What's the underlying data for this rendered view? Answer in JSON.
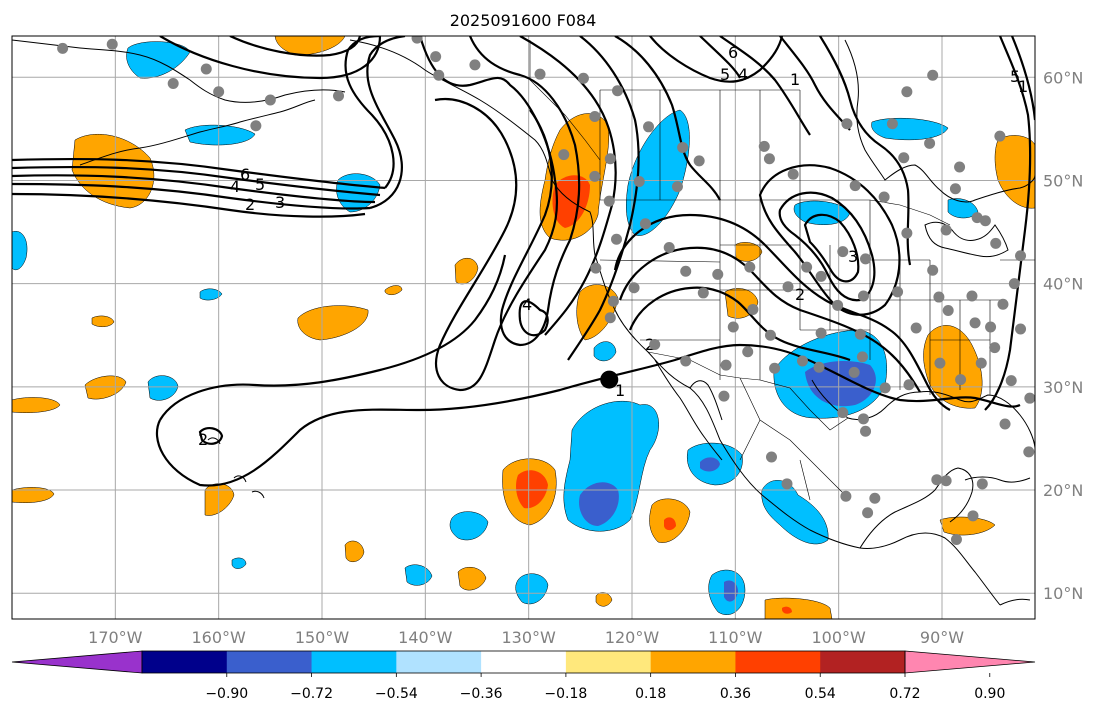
{
  "title": "2025091600 F084",
  "map": {
    "lon_range": [
      -180,
      -81
    ],
    "lat_range": [
      7.5,
      64
    ],
    "lon_labels": [
      "170°W",
      "160°W",
      "150°W",
      "140°W",
      "130°W",
      "120°W",
      "110°W",
      "100°W",
      "90°W"
    ],
    "lat_labels": [
      "60°N",
      "50°N",
      "40°N",
      "30°N",
      "20°N",
      "10°N"
    ],
    "gridlines": true,
    "marker": {
      "lon": -122.2,
      "lat": 30.7,
      "color": "#000000"
    },
    "station_dot_color": "#808080",
    "stations": [
      [
        -175.1,
        62.8
      ],
      [
        -170.3,
        63.2
      ],
      [
        -164.4,
        59.4
      ],
      [
        -161.2,
        60.8
      ],
      [
        -160,
        58.6
      ],
      [
        -155,
        57.8
      ],
      [
        -156.4,
        55.3
      ],
      [
        -148.4,
        58.2
      ],
      [
        -140.8,
        63.8
      ],
      [
        -139,
        62
      ],
      [
        -138.7,
        60.2
      ],
      [
        -135.2,
        61.2
      ],
      [
        -128.9,
        60.3
      ],
      [
        -124.7,
        59.9
      ],
      [
        -123.6,
        56.2
      ],
      [
        -121.4,
        58.7
      ],
      [
        -118.4,
        55.2
      ],
      [
        -126.6,
        52.5
      ],
      [
        -122.1,
        52.1
      ],
      [
        -123.6,
        50.4
      ],
      [
        -119.3,
        49.9
      ],
      [
        -115.1,
        53.2
      ],
      [
        -113.5,
        51.9
      ],
      [
        -115.6,
        49.4
      ],
      [
        -107.2,
        53.3
      ],
      [
        -104.4,
        50.6
      ],
      [
        -106.7,
        52.1
      ],
      [
        -98.4,
        49.5
      ],
      [
        -95.6,
        48.4
      ],
      [
        -93.7,
        52.2
      ],
      [
        -99.2,
        55.5
      ],
      [
        -90.9,
        60.2
      ],
      [
        -93.4,
        58.6
      ],
      [
        -94.8,
        55.5
      ],
      [
        -84.4,
        54.3
      ],
      [
        -88.7,
        49.2
      ],
      [
        -88.3,
        51.3
      ],
      [
        -91.2,
        53.6
      ],
      [
        -82.4,
        42.7
      ],
      [
        -84.8,
        43.9
      ],
      [
        -86.6,
        46.4
      ],
      [
        -85.8,
        46.1
      ],
      [
        -89.6,
        45.2
      ],
      [
        -90.9,
        41.3
      ],
      [
        -93.4,
        44.9
      ],
      [
        -97.4,
        42.4
      ],
      [
        -99.6,
        43.1
      ],
      [
        -103.1,
        41.6
      ],
      [
        -101.7,
        40.7
      ],
      [
        -108.6,
        41.6
      ],
      [
        -111.7,
        40.9
      ],
      [
        -114.8,
        41.2
      ],
      [
        -116.4,
        43.5
      ],
      [
        -118.7,
        45.8
      ],
      [
        -122.2,
        48
      ],
      [
        -121.5,
        44.3
      ],
      [
        -123.5,
        41.5
      ],
      [
        -119.8,
        39.6
      ],
      [
        -121.8,
        38.3
      ],
      [
        -122.1,
        36.7
      ],
      [
        -117.8,
        34.1
      ],
      [
        -113.1,
        39.1
      ],
      [
        -110.2,
        35.8
      ],
      [
        -108.3,
        37.5
      ],
      [
        -104.9,
        39.7
      ],
      [
        -106.6,
        35
      ],
      [
        -101.7,
        35.2
      ],
      [
        -100.1,
        37.9
      ],
      [
        -97.6,
        38.8
      ],
      [
        -94.3,
        39.2
      ],
      [
        -92.5,
        35.7
      ],
      [
        -97.9,
        35.1
      ],
      [
        -97.7,
        32.9
      ],
      [
        -101.9,
        31.9
      ],
      [
        -106.2,
        31.8
      ],
      [
        -110.9,
        32.1
      ],
      [
        -114.8,
        32.5
      ],
      [
        -111.1,
        29.1
      ],
      [
        -108.8,
        33.4
      ],
      [
        -103.5,
        32.5
      ],
      [
        -98.5,
        31.4
      ],
      [
        -95.5,
        29.9
      ],
      [
        -93.2,
        30.2
      ],
      [
        -90.2,
        32.3
      ],
      [
        -88.2,
        30.7
      ],
      [
        -86.2,
        32.3
      ],
      [
        -84.9,
        33.8
      ],
      [
        -85.3,
        35.8
      ],
      [
        -86.8,
        36.2
      ],
      [
        -83,
        40
      ],
      [
        -89.4,
        37.4
      ],
      [
        -87.1,
        38.8
      ],
      [
        -90.3,
        38.7
      ],
      [
        -84.1,
        38
      ],
      [
        -82.4,
        35.6
      ],
      [
        -83.3,
        30.6
      ],
      [
        -81.5,
        28.9
      ],
      [
        -83.9,
        26.4
      ],
      [
        -81.6,
        23.7
      ],
      [
        -86.1,
        20.6
      ],
      [
        -97.6,
        26.9
      ],
      [
        -99.6,
        27.5
      ],
      [
        -97.4,
        25.7
      ],
      [
        -106.5,
        23.2
      ],
      [
        -105,
        20.6
      ],
      [
        -99.3,
        19.4
      ],
      [
        -97.2,
        17.8
      ],
      [
        -96.5,
        19.2
      ],
      [
        -90.5,
        21
      ],
      [
        -89.6,
        20.9
      ],
      [
        -87,
        17.5
      ],
      [
        -88.6,
        15.2
      ]
    ]
  },
  "contours": [
    {
      "label": "1"
    },
    {
      "label": "2"
    },
    {
      "label": "3"
    },
    {
      "label": "4"
    },
    {
      "label": "5"
    },
    {
      "label": "6"
    }
  ],
  "colorbar": {
    "tick_labels": [
      "−0.90",
      "−0.72",
      "−0.54",
      "−0.36",
      "−0.18",
      "0.18",
      "0.36",
      "0.54",
      "0.72",
      "0.90"
    ],
    "colors": [
      "#9932cc",
      "#00008b",
      "#3a5fcd",
      "#00bfff",
      "#b0e2ff",
      "#ffffff",
      "#ffe87c",
      "#ffa500",
      "#ff4000",
      "#b22222",
      "#ff86b0"
    ],
    "extend": "both"
  }
}
